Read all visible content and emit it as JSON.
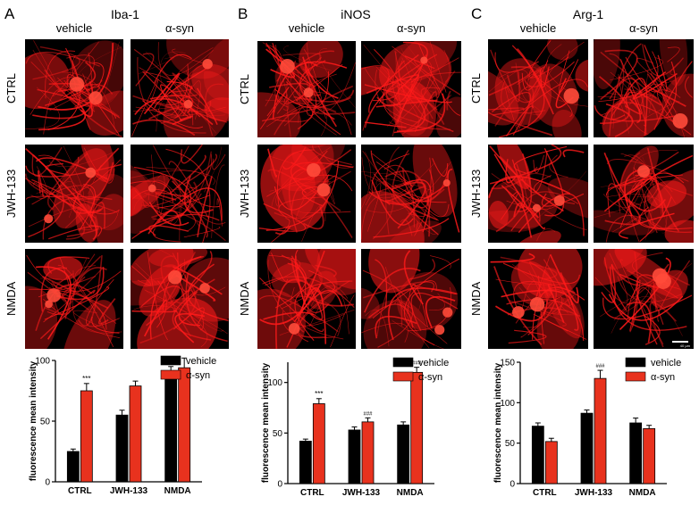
{
  "panels": [
    {
      "letter": "A",
      "marker": "Iba-1",
      "columns": [
        "vehicle",
        "α-syn"
      ],
      "rows": [
        "CTRL",
        "JWH-133",
        "NMDA"
      ]
    },
    {
      "letter": "B",
      "marker": "iNOS",
      "columns": [
        "vehicle",
        "α-syn"
      ],
      "rows": [
        "CTRL",
        "JWH-133",
        "NMDA"
      ]
    },
    {
      "letter": "C",
      "marker": "Arg-1",
      "columns": [
        "vehicle",
        "α-syn"
      ],
      "rows": [
        "CTRL",
        "JWH-133",
        "NMDA"
      ],
      "scale_bar": "40 µm"
    }
  ],
  "colors": {
    "vehicle": "#000000",
    "asyn": "#e8321e",
    "fluor": "#ff1a1a"
  },
  "chart_data": [
    {
      "type": "bar",
      "categories": [
        "CTRL",
        "JWH-133",
        "NMDA"
      ],
      "ylabel": "fluorescence mean intensity",
      "ylim": [
        0,
        100
      ],
      "yticks": [
        0,
        50,
        100
      ],
      "legend": "top-right",
      "series": [
        {
          "name": "vehicle",
          "values": [
            25,
            55,
            90
          ],
          "errors": [
            2,
            4,
            5
          ]
        },
        {
          "name": "α-syn",
          "values": [
            75,
            79,
            94
          ],
          "errors": [
            6,
            4,
            8
          ]
        }
      ],
      "annotations": [
        {
          "series": 1,
          "category": 0,
          "text": "***"
        }
      ]
    },
    {
      "type": "bar",
      "categories": [
        "CTRL",
        "JWH-133",
        "NMDA"
      ],
      "ylabel": "fluorescence mean intensity",
      "ylim": [
        0,
        120
      ],
      "yticks": [
        0,
        50,
        100
      ],
      "legend": "top-right",
      "series": [
        {
          "name": "vehicle",
          "values": [
            42,
            53,
            58
          ],
          "errors": [
            2,
            3,
            3
          ]
        },
        {
          "name": "α-syn",
          "values": [
            79,
            61,
            110
          ],
          "errors": [
            5,
            4,
            5
          ]
        }
      ],
      "annotations": [
        {
          "series": 1,
          "category": 0,
          "text": "***"
        },
        {
          "series": 1,
          "category": 1,
          "text": "###"
        },
        {
          "series": 1,
          "category": 2,
          "text": "###"
        }
      ]
    },
    {
      "type": "bar",
      "categories": [
        "CTRL",
        "JWH-133",
        "NMDA"
      ],
      "ylabel": "fluorescence mean intensity",
      "ylim": [
        0,
        150
      ],
      "yticks": [
        0,
        50,
        100,
        150
      ],
      "legend": "top-right",
      "series": [
        {
          "name": "vehicle",
          "values": [
            71,
            87,
            75
          ],
          "errors": [
            4,
            4,
            6
          ]
        },
        {
          "name": "α-syn",
          "values": [
            52,
            130,
            68
          ],
          "errors": [
            4,
            10,
            4
          ]
        }
      ],
      "annotations": [
        {
          "series": 1,
          "category": 1,
          "text": "###"
        }
      ]
    }
  ]
}
